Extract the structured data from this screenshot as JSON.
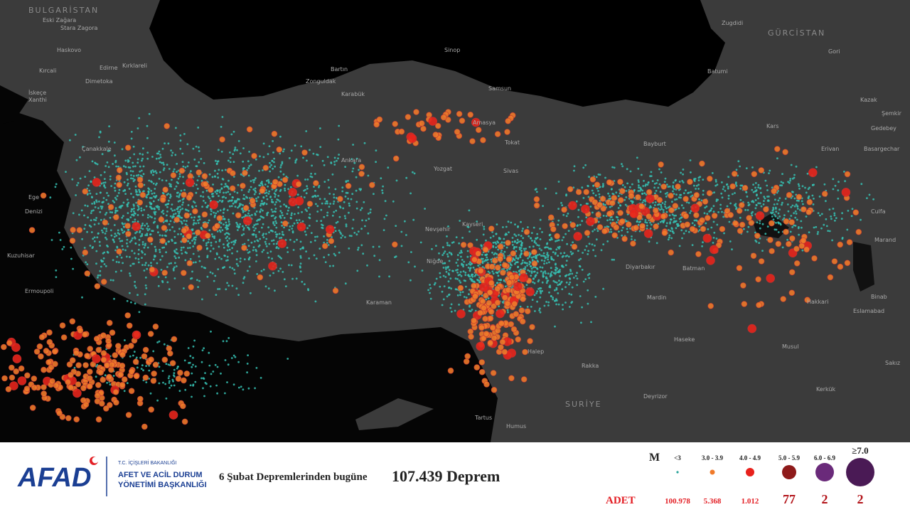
{
  "map": {
    "labels": [
      "BULGARİSTAN",
      "Eski Zağara",
      "Stara Zagora",
      "Haskovo",
      "Kırcali",
      "Edirne",
      "Kırklareli",
      "Dimetoka",
      "İskeçe",
      "Xanthi",
      "Çanakkale",
      "Ege",
      "Denizi",
      "Ermoupoli",
      "Kuzuhisar",
      "Zonguldak",
      "Bartın",
      "Karabük",
      "Sinop",
      "Samsun",
      "Amasya",
      "Tokat",
      "Ankara",
      "Yozgat",
      "Sivas",
      "Nevşehir",
      "Kayseri",
      "Niğde",
      "Karaman",
      "Bayburt",
      "Kars",
      "Batumi",
      "Zugdidi",
      "GÜRCİSTAN",
      "Gori",
      "Kazak",
      "Şemkir",
      "Gedebey",
      "Erivan",
      "Basargechar",
      "Culfa",
      "Marand",
      "Binab",
      "Eslamabad",
      "Hakkari",
      "Diyarbakır",
      "Batman",
      "Mardin",
      "Haseke",
      "Musul",
      "Kerkük",
      "Sakız",
      "Halep",
      "Rakka",
      "Deyrizor",
      "SURİYE",
      "Tartus",
      "Humus"
    ]
  },
  "banner": {
    "logo": "AFAD",
    "ministry": "T.C. İÇİŞLERİ BAKANLIĞI",
    "agency_line1": "AFET VE ACİL DURUM",
    "agency_line2": "YÖNETİMİ BAŞKANLIĞI",
    "headline": "6 Şubat Depremlerinden bugüne",
    "total": "107.439 Deprem"
  },
  "legend": {
    "title": "M",
    "count_title": "ADET",
    "classes": [
      {
        "range": "<3",
        "count": "100.978",
        "color": "#2aa39a"
      },
      {
        "range": "3.0 - 3.9",
        "count": "5.368",
        "color": "#f07a2a"
      },
      {
        "range": "4.0 - 4.9",
        "count": "1.012",
        "color": "#e8211c"
      },
      {
        "range": "5.0 - 5.9",
        "count": "77",
        "color": "#8e1a1a"
      },
      {
        "range": "6.0 - 6.9",
        "count": "2",
        "color": "#6a2a7a"
      },
      {
        "range": "≥7.0",
        "count": "2",
        "color": "#4a1a55"
      }
    ]
  }
}
